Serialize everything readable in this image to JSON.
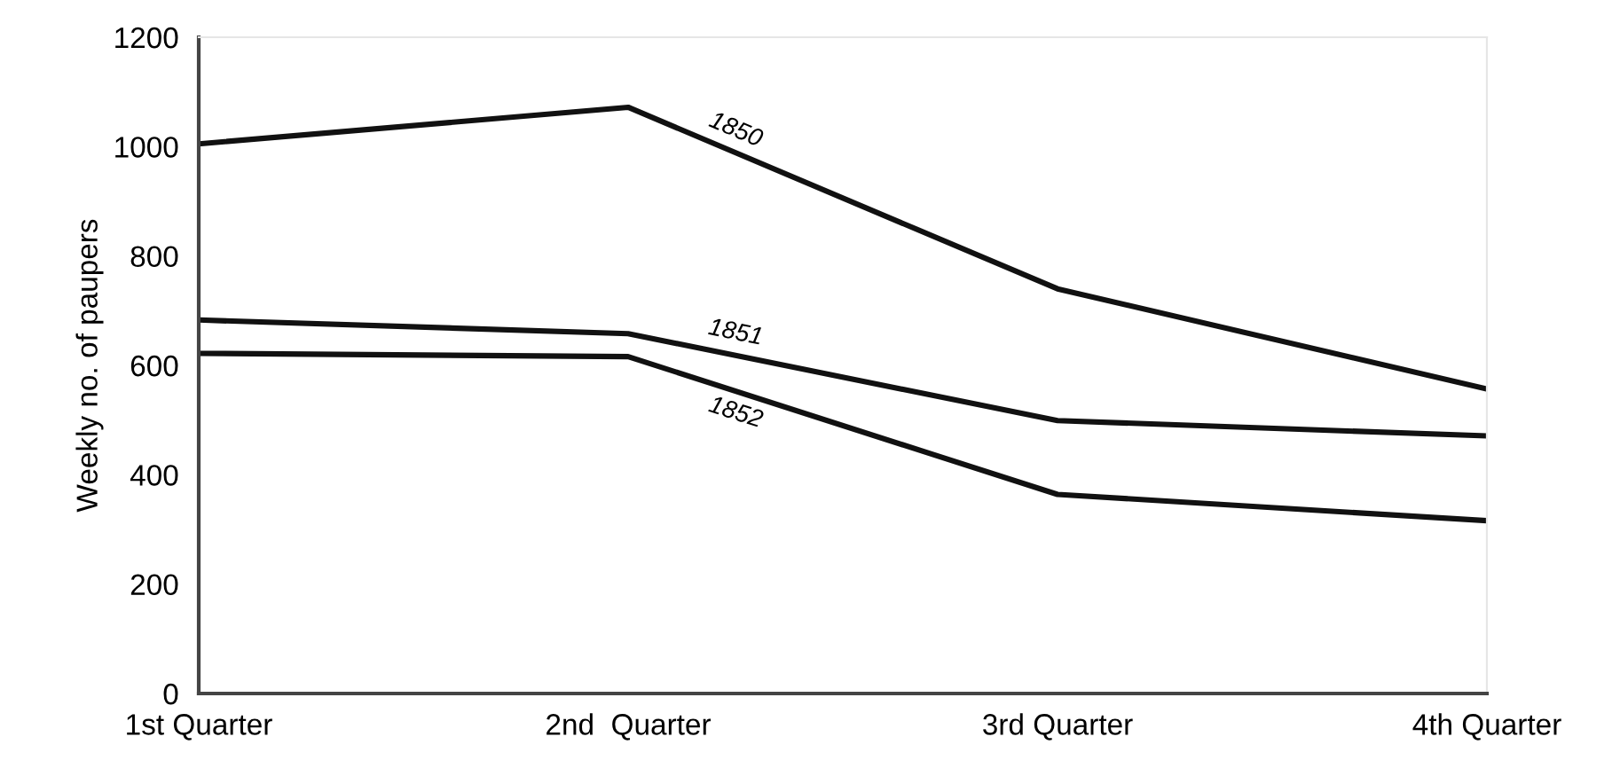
{
  "chart_data": {
    "type": "line",
    "ylabel": "Weekly no. of paupers",
    "categories": [
      "1st Quarter",
      "2nd  Quarter",
      "3rd Quarter",
      "4th Quarter"
    ],
    "ylim": [
      0,
      1200
    ],
    "yticks": [
      0,
      200,
      400,
      600,
      800,
      1000,
      1200
    ],
    "grid": false,
    "legend": false,
    "marker": "none",
    "line_style": "solid",
    "series": [
      {
        "name": "1850",
        "color": "#111111",
        "values": [
          1005,
          1072,
          740,
          557
        ]
      },
      {
        "name": "1851",
        "color": "#111111",
        "values": [
          683,
          658,
          499,
          471
        ]
      },
      {
        "name": "1852",
        "color": "#111111",
        "values": [
          622,
          616,
          364,
          316
        ]
      }
    ]
  }
}
